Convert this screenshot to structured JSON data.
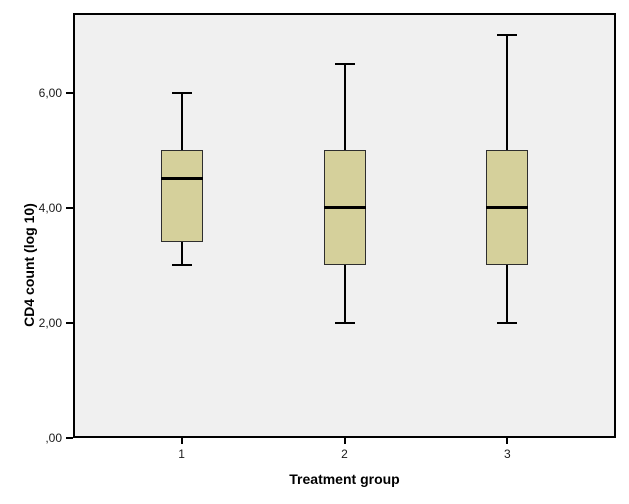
{
  "chart_data": {
    "type": "boxplot",
    "title": "",
    "xlabel": "Treatment group",
    "ylabel": "CD4 count (log 10)",
    "categories": [
      "1",
      "2",
      "3"
    ],
    "y_axis": {
      "tick_labels": [
        ",00",
        "2,00",
        "4,00",
        "6,00"
      ],
      "tick_values": [
        0,
        2,
        4,
        6
      ],
      "range": [
        0,
        7.4
      ]
    },
    "series": [
      {
        "category": "1",
        "whisker_low": 3.0,
        "q1": 3.4,
        "median": 4.5,
        "q3": 5.0,
        "whisker_high": 6.0
      },
      {
        "category": "2",
        "whisker_low": 2.0,
        "q1": 3.0,
        "median": 4.0,
        "q3": 5.0,
        "whisker_high": 6.5
      },
      {
        "category": "3",
        "whisker_low": 2.0,
        "q1": 3.0,
        "median": 4.0,
        "q3": 5.0,
        "whisker_high": 7.0
      }
    ],
    "grid": false,
    "colors": {
      "box_fill": "#d5d09b",
      "box_border": "#2e2e2e",
      "median": "#000000",
      "whisker": "#000000",
      "panel_background": "#f0f0f0",
      "panel_border": "#000000",
      "background": "#ffffff",
      "text": "#1a1a1a"
    }
  }
}
